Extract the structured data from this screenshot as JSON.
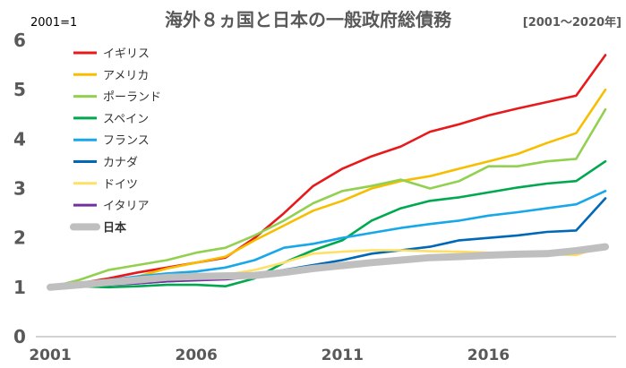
{
  "chart_data": {
    "type": "line",
    "title": "海外８ヵ国と日本の一般政府総債務",
    "subtitle": "[2001～2020年]",
    "base_note": "2001=1",
    "x": [
      2001,
      2002,
      2003,
      2004,
      2005,
      2006,
      2007,
      2008,
      2009,
      2010,
      2011,
      2012,
      2013,
      2014,
      2015,
      2016,
      2017,
      2018,
      2019,
      2020
    ],
    "x_ticks": [
      "2001",
      "2006",
      "2011",
      "2016"
    ],
    "y_ticks": [
      "0",
      "1",
      "2",
      "3",
      "4",
      "5",
      "6"
    ],
    "ylim": [
      0,
      6
    ],
    "xlim": [
      2001,
      2020
    ],
    "grid": false,
    "legend_position": "top-left",
    "series": [
      {
        "name": "イギリス",
        "color": "#e8191a",
        "values": [
          1.0,
          1.08,
          1.18,
          1.3,
          1.4,
          1.5,
          1.6,
          2.0,
          2.5,
          3.05,
          3.4,
          3.65,
          3.85,
          4.15,
          4.3,
          4.48,
          4.62,
          4.75,
          4.88,
          5.7
        ]
      },
      {
        "name": "アメリカ",
        "color": "#f7be00",
        "values": [
          1.0,
          1.05,
          1.1,
          1.22,
          1.38,
          1.5,
          1.62,
          1.95,
          2.25,
          2.55,
          2.75,
          3.0,
          3.15,
          3.25,
          3.4,
          3.55,
          3.7,
          3.92,
          4.12,
          5.0
        ]
      },
      {
        "name": "ポーランド",
        "color": "#92d050",
        "values": [
          1.0,
          1.15,
          1.35,
          1.45,
          1.55,
          1.7,
          1.8,
          2.05,
          2.35,
          2.7,
          2.95,
          3.05,
          3.18,
          3.0,
          3.15,
          3.45,
          3.45,
          3.55,
          3.6,
          4.6
        ]
      },
      {
        "name": "スペイン",
        "color": "#00a84f",
        "values": [
          1.0,
          1.02,
          1.0,
          1.02,
          1.05,
          1.05,
          1.02,
          1.18,
          1.5,
          1.75,
          1.95,
          2.35,
          2.6,
          2.75,
          2.82,
          2.92,
          3.02,
          3.1,
          3.15,
          3.55
        ]
      },
      {
        "name": "フランス",
        "color": "#18a7e8",
        "values": [
          1.0,
          1.08,
          1.15,
          1.22,
          1.28,
          1.32,
          1.4,
          1.55,
          1.8,
          1.88,
          2.0,
          2.1,
          2.2,
          2.28,
          2.35,
          2.45,
          2.52,
          2.6,
          2.68,
          2.95
        ]
      },
      {
        "name": "カナダ",
        "color": "#0068b7",
        "values": [
          1.0,
          1.02,
          1.05,
          1.08,
          1.12,
          1.15,
          1.18,
          1.25,
          1.35,
          1.45,
          1.55,
          1.68,
          1.75,
          1.82,
          1.95,
          2.0,
          2.05,
          2.12,
          2.15,
          2.8
        ]
      },
      {
        "name": "ドイツ",
        "color": "#ffe066",
        "values": [
          1.0,
          1.05,
          1.1,
          1.15,
          1.2,
          1.22,
          1.25,
          1.35,
          1.5,
          1.68,
          1.72,
          1.75,
          1.75,
          1.73,
          1.72,
          1.7,
          1.68,
          1.67,
          1.65,
          1.85
        ]
      },
      {
        "name": "イタリア",
        "color": "#7030a0",
        "values": [
          1.0,
          1.02,
          1.05,
          1.08,
          1.12,
          1.14,
          1.16,
          1.22,
          1.3,
          1.36,
          1.4,
          1.47,
          1.53,
          1.58,
          1.6,
          1.63,
          1.65,
          1.67,
          1.7,
          1.8
        ]
      },
      {
        "name": "日本",
        "color": "#bfbfbf",
        "values": [
          1.0,
          1.05,
          1.1,
          1.15,
          1.2,
          1.22,
          1.23,
          1.24,
          1.3,
          1.38,
          1.44,
          1.5,
          1.55,
          1.6,
          1.62,
          1.65,
          1.67,
          1.68,
          1.74,
          1.82
        ]
      }
    ]
  }
}
